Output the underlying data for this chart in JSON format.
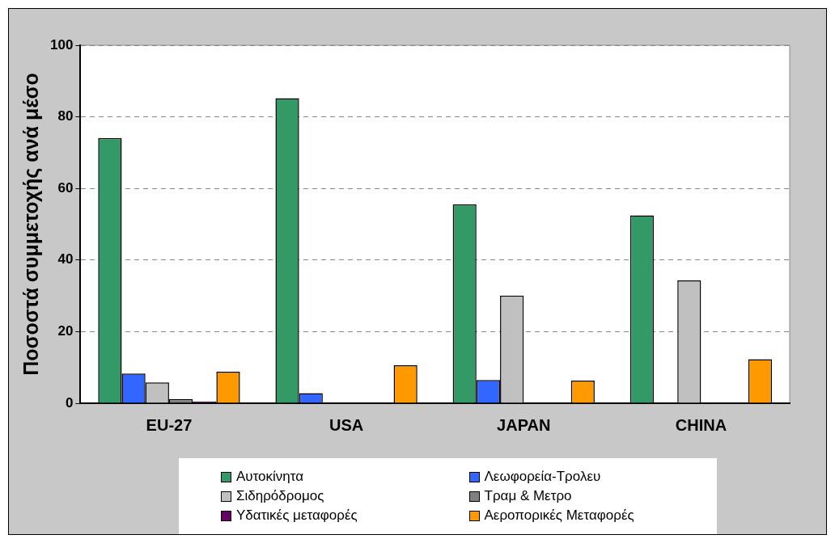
{
  "chart_data": {
    "type": "bar",
    "ylabel": "Ποσοστά συμμετοχής ανά μέσο",
    "categories": [
      "EU-27",
      "USA",
      "JAPAN",
      "CHINA"
    ],
    "series": [
      {
        "name": "Αυτοκίνητα",
        "color": "#339966",
        "values": [
          74.1,
          85.2,
          55.6,
          52.5
        ]
      },
      {
        "name": "Λεωφορεία-Τρολευ",
        "color": "#3366ff",
        "values": [
          8.3,
          2.8,
          6.5,
          null
        ]
      },
      {
        "name": "Σιδηρόδρομος",
        "color": "#c0c0c0",
        "values": [
          5.8,
          null,
          30.1,
          34.3
        ]
      },
      {
        "name": "Τραμ & Μετρο",
        "color": "#808080",
        "values": [
          1.2,
          null,
          null,
          null
        ]
      },
      {
        "name": "Υδατικές μεταφορές",
        "color": "#660066",
        "values": [
          0.5,
          null,
          null,
          null
        ]
      },
      {
        "name": "Αεροπορικές Μεταφορές",
        "color": "#ff9900",
        "values": [
          8.8,
          10.6,
          6.3,
          12.3
        ]
      }
    ],
    "ylim": [
      0,
      100
    ],
    "yticks": [
      0,
      20,
      40,
      60,
      80,
      100
    ],
    "grid": "y",
    "legend": "bottom"
  }
}
